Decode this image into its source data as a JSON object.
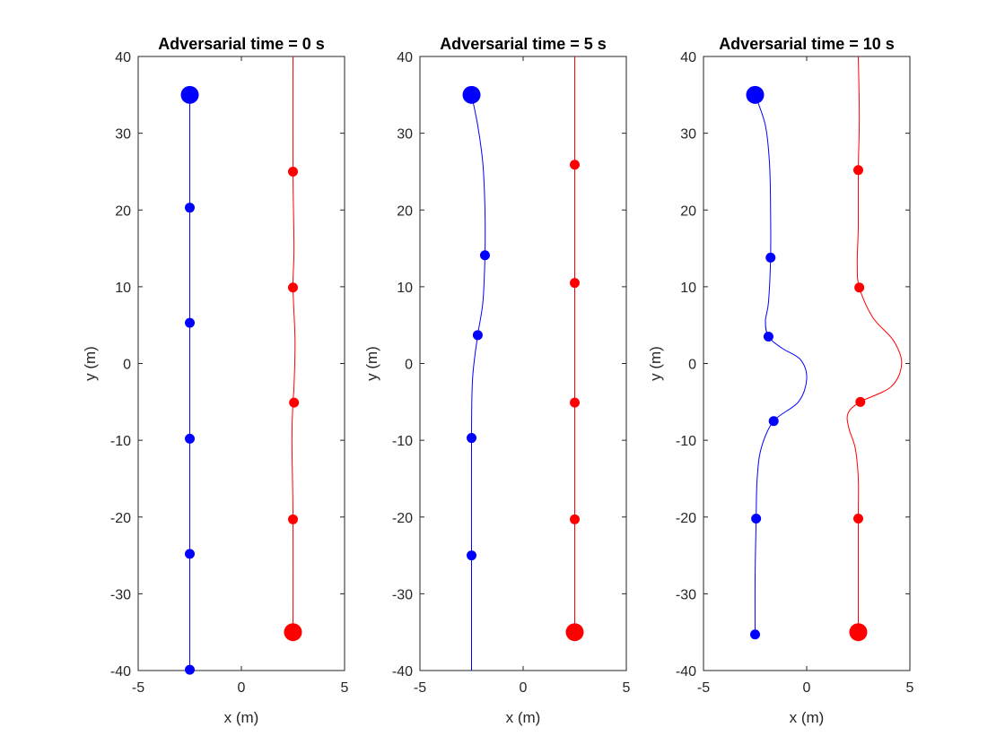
{
  "chart_data": [
    {
      "type": "line",
      "title": "Adversarial time = 0 s",
      "xlabel": "x (m)",
      "ylabel": "y (m)",
      "xlim": [
        -5,
        5
      ],
      "ylim": [
        -40,
        40
      ],
      "xticks": [
        "-5",
        "0",
        "5"
      ],
      "yticks": [
        "-40",
        "-30",
        "-20",
        "-10",
        "0",
        "10",
        "20",
        "30",
        "40"
      ],
      "series": [
        {
          "color": "#0000ff",
          "path": [
            [
              -2.5,
              35
            ],
            [
              -2.5,
              20
            ],
            [
              -2.5,
              5
            ],
            [
              -2.5,
              -10
            ],
            [
              -2.5,
              -25
            ],
            [
              -2.5,
              -40
            ]
          ],
          "start": [
            -2.5,
            35
          ],
          "markers": [
            [
              -2.5,
              20.3
            ],
            [
              -2.5,
              5.3
            ],
            [
              -2.5,
              -9.8
            ],
            [
              -2.5,
              -24.8
            ],
            [
              -2.5,
              -39.9
            ]
          ]
        },
        {
          "color": "#ff0000",
          "path": [
            [
              2.5,
              40
            ],
            [
              2.5,
              25
            ],
            [
              2.55,
              15
            ],
            [
              2.5,
              10
            ],
            [
              2.6,
              3
            ],
            [
              2.55,
              -3
            ],
            [
              2.5,
              -5
            ],
            [
              2.45,
              -10
            ],
            [
              2.5,
              -20
            ],
            [
              2.5,
              -35
            ]
          ],
          "start": [
            2.5,
            -35
          ],
          "markers": [
            [
              2.5,
              25
            ],
            [
              2.5,
              9.9
            ],
            [
              2.55,
              -5.1
            ],
            [
              2.5,
              -20.3
            ]
          ]
        }
      ]
    },
    {
      "type": "line",
      "title": "Adversarial time = 5 s",
      "xlabel": "x (m)",
      "ylabel": "y (m)",
      "xlim": [
        -5,
        5
      ],
      "ylim": [
        -40,
        40
      ],
      "xticks": [
        "-5",
        "0",
        "5"
      ],
      "yticks": [
        "-40",
        "-30",
        "-20",
        "-10",
        "0",
        "10",
        "20",
        "30",
        "40"
      ],
      "series": [
        {
          "color": "#0000ff",
          "path": [
            [
              -2.5,
              35
            ],
            [
              -2.2,
              31
            ],
            [
              -1.95,
              26
            ],
            [
              -1.85,
              20
            ],
            [
              -1.85,
              14.1
            ],
            [
              -1.95,
              8
            ],
            [
              -2.2,
              3.7
            ],
            [
              -2.45,
              -2
            ],
            [
              -2.5,
              -9.7
            ],
            [
              -2.5,
              -25
            ],
            [
              -2.5,
              -40
            ]
          ],
          "start": [
            -2.5,
            35
          ],
          "markers": [
            [
              -1.85,
              14.1
            ],
            [
              -2.2,
              3.7
            ],
            [
              -2.5,
              -9.7
            ],
            [
              -2.5,
              -25
            ]
          ]
        },
        {
          "color": "#ff0000",
          "path": [
            [
              2.5,
              40
            ],
            [
              2.5,
              25.9
            ],
            [
              2.5,
              10.5
            ],
            [
              2.5,
              -5.1
            ],
            [
              2.5,
              -20.3
            ],
            [
              2.5,
              -35
            ]
          ],
          "start": [
            2.5,
            -35
          ],
          "markers": [
            [
              2.5,
              25.9
            ],
            [
              2.5,
              10.5
            ],
            [
              2.5,
              -5.1
            ],
            [
              2.5,
              -20.3
            ]
          ]
        }
      ]
    },
    {
      "type": "line",
      "title": "Adversarial time = 10 s",
      "xlabel": "x (m)",
      "ylabel": "y (m)",
      "xlim": [
        -5,
        5
      ],
      "ylim": [
        -40,
        40
      ],
      "xticks": [
        "-5",
        "0",
        "5"
      ],
      "yticks": [
        "-40",
        "-30",
        "-20",
        "-10",
        "0",
        "10",
        "20",
        "30",
        "40"
      ],
      "series": [
        {
          "color": "#0000ff",
          "path": [
            [
              -2.5,
              35
            ],
            [
              -2.0,
              31
            ],
            [
              -1.8,
              26
            ],
            [
              -1.75,
              20
            ],
            [
              -1.75,
              13.8
            ],
            [
              -1.85,
              8
            ],
            [
              -2.0,
              5.5
            ],
            [
              -1.85,
              3.5
            ],
            [
              -1.2,
              2
            ],
            [
              -0.3,
              0.5
            ],
            [
              0,
              -2
            ],
            [
              -0.4,
              -5
            ],
            [
              -1.6,
              -7.5
            ],
            [
              -2.2,
              -11
            ],
            [
              -2.4,
              -15
            ],
            [
              -2.45,
              -20.2
            ],
            [
              -2.5,
              -28
            ],
            [
              -2.5,
              -35.3
            ]
          ],
          "start": [
            -2.5,
            35
          ],
          "markers": [
            [
              -1.75,
              13.8
            ],
            [
              -1.85,
              3.5
            ],
            [
              -1.6,
              -7.5
            ],
            [
              -2.45,
              -20.2
            ],
            [
              -2.5,
              -35.3
            ]
          ]
        },
        {
          "color": "#ff0000",
          "path": [
            [
              2.5,
              40
            ],
            [
              2.55,
              32
            ],
            [
              2.5,
              25.2
            ],
            [
              2.5,
              18
            ],
            [
              2.45,
              13
            ],
            [
              2.55,
              9.9
            ],
            [
              3.2,
              6
            ],
            [
              4.2,
              3
            ],
            [
              4.6,
              0
            ],
            [
              4.1,
              -3
            ],
            [
              2.6,
              -5
            ],
            [
              2,
              -6.5
            ],
            [
              2.05,
              -8.5
            ],
            [
              2.35,
              -11
            ],
            [
              2.5,
              -15
            ],
            [
              2.5,
              -20.2
            ],
            [
              2.5,
              -35
            ]
          ],
          "start": [
            2.5,
            -35
          ],
          "markers": [
            [
              2.5,
              25.2
            ],
            [
              2.55,
              9.9
            ],
            [
              2.6,
              -5
            ],
            [
              2.5,
              -20.2
            ]
          ]
        }
      ]
    }
  ]
}
